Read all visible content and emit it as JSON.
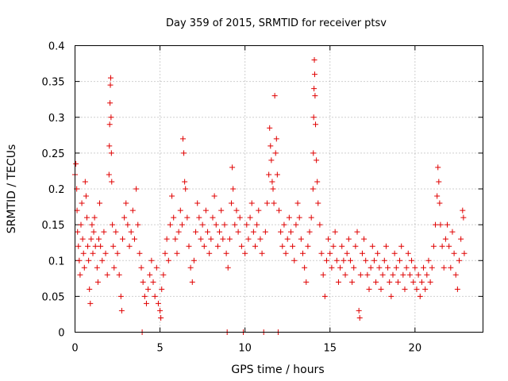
{
  "chart_data": {
    "type": "scatter",
    "title": "Day 359 of 2015, SRMTID for receiver ptsv",
    "xlabel": "GPS time / hours",
    "ylabel": "SRMTID / TECUs",
    "xlim": [
      0,
      24
    ],
    "ylim": [
      0,
      0.4
    ],
    "xticks": [
      0,
      5,
      10,
      15,
      20
    ],
    "xtick_labels": [
      "0",
      "5",
      "10",
      "15",
      "20"
    ],
    "yticks": [
      0,
      0.05,
      0.1,
      0.15,
      0.2,
      0.25,
      0.3,
      0.35,
      0.4
    ],
    "ytick_labels": [
      "0",
      "0.05",
      "0.1",
      "0.15",
      "0.2",
      "0.25",
      "0.3",
      "0.35",
      "0.4"
    ],
    "grid": true,
    "marker": "+",
    "color": "#e00000",
    "series": [
      {
        "name": "SRMTID",
        "points": [
          [
            0.0,
            0.22
          ],
          [
            0.05,
            0.235
          ],
          [
            0.1,
            0.2
          ],
          [
            0.12,
            0.17
          ],
          [
            0.15,
            0.14
          ],
          [
            0.2,
            0.12
          ],
          [
            0.25,
            0.1
          ],
          [
            0.3,
            0.08
          ],
          [
            0.35,
            0.15
          ],
          [
            0.4,
            0.18
          ],
          [
            0.45,
            0.13
          ],
          [
            0.5,
            0.11
          ],
          [
            0.55,
            0.09
          ],
          [
            0.6,
            0.21
          ],
          [
            0.65,
            0.19
          ],
          [
            0.7,
            0.16
          ],
          [
            0.75,
            0.12
          ],
          [
            0.8,
            0.1
          ],
          [
            0.85,
            0.06
          ],
          [
            0.9,
            0.04
          ],
          [
            0.95,
            0.13
          ],
          [
            1.0,
            0.15
          ],
          [
            1.05,
            0.11
          ],
          [
            1.1,
            0.14
          ],
          [
            1.15,
            0.16
          ],
          [
            1.2,
            0.12
          ],
          [
            1.3,
            0.09
          ],
          [
            1.35,
            0.07
          ],
          [
            1.4,
            0.13
          ],
          [
            1.45,
            0.18
          ],
          [
            1.5,
            0.12
          ],
          [
            1.6,
            0.1
          ],
          [
            1.7,
            0.14
          ],
          [
            1.8,
            0.11
          ],
          [
            1.9,
            0.08
          ],
          [
            2.0,
            0.22
          ],
          [
            2.02,
            0.26
          ],
          [
            2.04,
            0.29
          ],
          [
            2.06,
            0.32
          ],
          [
            2.08,
            0.345
          ],
          [
            2.1,
            0.355
          ],
          [
            2.12,
            0.3
          ],
          [
            2.14,
            0.25
          ],
          [
            2.16,
            0.21
          ],
          [
            2.2,
            0.15
          ],
          [
            2.25,
            0.12
          ],
          [
            2.3,
            0.09
          ],
          [
            2.4,
            0.14
          ],
          [
            2.5,
            0.11
          ],
          [
            2.6,
            0.08
          ],
          [
            2.7,
            0.05
          ],
          [
            2.75,
            0.03
          ],
          [
            2.8,
            0.13
          ],
          [
            2.9,
            0.16
          ],
          [
            3.0,
            0.18
          ],
          [
            3.1,
            0.15
          ],
          [
            3.2,
            0.12
          ],
          [
            3.3,
            0.14
          ],
          [
            3.4,
            0.17
          ],
          [
            3.5,
            0.13
          ],
          [
            3.6,
            0.2
          ],
          [
            3.7,
            0.15
          ],
          [
            3.8,
            0.11
          ],
          [
            3.9,
            0.09
          ],
          [
            3.95,
            0.0
          ],
          [
            4.0,
            0.07
          ],
          [
            4.1,
            0.05
          ],
          [
            4.2,
            0.04
          ],
          [
            4.3,
            0.06
          ],
          [
            4.4,
            0.08
          ],
          [
            4.5,
            0.1
          ],
          [
            4.6,
            0.07
          ],
          [
            4.7,
            0.05
          ],
          [
            4.8,
            0.09
          ],
          [
            4.9,
            0.04
          ],
          [
            5.0,
            0.03
          ],
          [
            5.05,
            0.02
          ],
          [
            5.1,
            0.06
          ],
          [
            5.2,
            0.08
          ],
          [
            5.3,
            0.11
          ],
          [
            5.4,
            0.13
          ],
          [
            5.5,
            0.1
          ],
          [
            5.6,
            0.15
          ],
          [
            5.7,
            0.19
          ],
          [
            5.8,
            0.16
          ],
          [
            5.9,
            0.13
          ],
          [
            6.0,
            0.11
          ],
          [
            6.1,
            0.14
          ],
          [
            6.2,
            0.17
          ],
          [
            6.3,
            0.15
          ],
          [
            6.35,
            0.27
          ],
          [
            6.4,
            0.25
          ],
          [
            6.45,
            0.21
          ],
          [
            6.5,
            0.2
          ],
          [
            6.6,
            0.16
          ],
          [
            6.7,
            0.12
          ],
          [
            6.8,
            0.09
          ],
          [
            6.9,
            0.07
          ],
          [
            7.0,
            0.1
          ],
          [
            7.1,
            0.14
          ],
          [
            7.2,
            0.18
          ],
          [
            7.3,
            0.16
          ],
          [
            7.4,
            0.13
          ],
          [
            7.5,
            0.15
          ],
          [
            7.6,
            0.12
          ],
          [
            7.7,
            0.17
          ],
          [
            7.8,
            0.14
          ],
          [
            7.9,
            0.11
          ],
          [
            8.0,
            0.13
          ],
          [
            8.1,
            0.16
          ],
          [
            8.2,
            0.19
          ],
          [
            8.3,
            0.15
          ],
          [
            8.4,
            0.12
          ],
          [
            8.5,
            0.14
          ],
          [
            8.6,
            0.17
          ],
          [
            8.7,
            0.13
          ],
          [
            8.8,
            0.15
          ],
          [
            8.9,
            0.11
          ],
          [
            8.95,
            0.0
          ],
          [
            9.0,
            0.09
          ],
          [
            9.1,
            0.13
          ],
          [
            9.2,
            0.18
          ],
          [
            9.25,
            0.23
          ],
          [
            9.3,
            0.2
          ],
          [
            9.4,
            0.15
          ],
          [
            9.5,
            0.17
          ],
          [
            9.6,
            0.14
          ],
          [
            9.7,
            0.16
          ],
          [
            9.8,
            0.12
          ],
          [
            9.9,
            0.0
          ],
          [
            10.0,
            0.11
          ],
          [
            10.1,
            0.15
          ],
          [
            10.2,
            0.13
          ],
          [
            10.3,
            0.16
          ],
          [
            10.4,
            0.18
          ],
          [
            10.5,
            0.14
          ],
          [
            10.6,
            0.12
          ],
          [
            10.7,
            0.15
          ],
          [
            10.8,
            0.17
          ],
          [
            10.9,
            0.13
          ],
          [
            11.0,
            0.11
          ],
          [
            11.1,
            0.0
          ],
          [
            11.2,
            0.14
          ],
          [
            11.3,
            0.18
          ],
          [
            11.4,
            0.22
          ],
          [
            11.45,
            0.285
          ],
          [
            11.5,
            0.26
          ],
          [
            11.55,
            0.24
          ],
          [
            11.6,
            0.21
          ],
          [
            11.65,
            0.2
          ],
          [
            11.7,
            0.18
          ],
          [
            11.75,
            0.33
          ],
          [
            11.8,
            0.25
          ],
          [
            11.85,
            0.27
          ],
          [
            11.9,
            0.22
          ],
          [
            11.95,
            0.0
          ],
          [
            12.0,
            0.17
          ],
          [
            12.1,
            0.14
          ],
          [
            12.2,
            0.12
          ],
          [
            12.3,
            0.15
          ],
          [
            12.4,
            0.11
          ],
          [
            12.5,
            0.13
          ],
          [
            12.6,
            0.16
          ],
          [
            12.7,
            0.14
          ],
          [
            12.8,
            0.12
          ],
          [
            12.9,
            0.1
          ],
          [
            13.0,
            0.15
          ],
          [
            13.1,
            0.18
          ],
          [
            13.2,
            0.16
          ],
          [
            13.3,
            0.13
          ],
          [
            13.4,
            0.11
          ],
          [
            13.5,
            0.09
          ],
          [
            13.6,
            0.07
          ],
          [
            13.7,
            0.12
          ],
          [
            13.8,
            0.14
          ],
          [
            13.9,
            0.16
          ],
          [
            14.0,
            0.2
          ],
          [
            14.02,
            0.25
          ],
          [
            14.04,
            0.3
          ],
          [
            14.06,
            0.34
          ],
          [
            14.08,
            0.38
          ],
          [
            14.1,
            0.36
          ],
          [
            14.12,
            0.33
          ],
          [
            14.15,
            0.29
          ],
          [
            14.2,
            0.24
          ],
          [
            14.25,
            0.21
          ],
          [
            14.3,
            0.18
          ],
          [
            14.4,
            0.15
          ],
          [
            14.5,
            0.11
          ],
          [
            14.6,
            0.08
          ],
          [
            14.7,
            0.05
          ],
          [
            14.8,
            0.1
          ],
          [
            14.9,
            0.13
          ],
          [
            15.0,
            0.11
          ],
          [
            15.1,
            0.09
          ],
          [
            15.2,
            0.12
          ],
          [
            15.3,
            0.14
          ],
          [
            15.4,
            0.1
          ],
          [
            15.5,
            0.07
          ],
          [
            15.6,
            0.09
          ],
          [
            15.7,
            0.12
          ],
          [
            15.8,
            0.1
          ],
          [
            15.9,
            0.08
          ],
          [
            16.0,
            0.11
          ],
          [
            16.1,
            0.13
          ],
          [
            16.2,
            0.1
          ],
          [
            16.3,
            0.07
          ],
          [
            16.4,
            0.09
          ],
          [
            16.5,
            0.12
          ],
          [
            16.6,
            0.14
          ],
          [
            16.7,
            0.03
          ],
          [
            16.75,
            0.02
          ],
          [
            16.8,
            0.08
          ],
          [
            16.9,
            0.11
          ],
          [
            17.0,
            0.13
          ],
          [
            17.1,
            0.1
          ],
          [
            17.2,
            0.08
          ],
          [
            17.3,
            0.06
          ],
          [
            17.4,
            0.09
          ],
          [
            17.5,
            0.12
          ],
          [
            17.6,
            0.1
          ],
          [
            17.7,
            0.07
          ],
          [
            17.8,
            0.11
          ],
          [
            17.9,
            0.09
          ],
          [
            18.0,
            0.06
          ],
          [
            18.1,
            0.08
          ],
          [
            18.2,
            0.1
          ],
          [
            18.3,
            0.12
          ],
          [
            18.4,
            0.09
          ],
          [
            18.5,
            0.07
          ],
          [
            18.6,
            0.05
          ],
          [
            18.7,
            0.08
          ],
          [
            18.8,
            0.11
          ],
          [
            18.9,
            0.09
          ],
          [
            19.0,
            0.07
          ],
          [
            19.1,
            0.1
          ],
          [
            19.2,
            0.12
          ],
          [
            19.3,
            0.08
          ],
          [
            19.4,
            0.06
          ],
          [
            19.5,
            0.09
          ],
          [
            19.6,
            0.11
          ],
          [
            19.7,
            0.08
          ],
          [
            19.8,
            0.1
          ],
          [
            19.9,
            0.07
          ],
          [
            20.0,
            0.09
          ],
          [
            20.1,
            0.06
          ],
          [
            20.2,
            0.08
          ],
          [
            20.3,
            0.05
          ],
          [
            20.4,
            0.07
          ],
          [
            20.5,
            0.09
          ],
          [
            20.6,
            0.06
          ],
          [
            20.7,
            0.08
          ],
          [
            20.8,
            0.1
          ],
          [
            20.9,
            0.07
          ],
          [
            21.0,
            0.09
          ],
          [
            21.1,
            0.12
          ],
          [
            21.2,
            0.15
          ],
          [
            21.3,
            0.19
          ],
          [
            21.35,
            0.23
          ],
          [
            21.4,
            0.21
          ],
          [
            21.45,
            0.18
          ],
          [
            21.5,
            0.15
          ],
          [
            21.6,
            0.12
          ],
          [
            21.7,
            0.09
          ],
          [
            21.8,
            0.13
          ],
          [
            21.9,
            0.15
          ],
          [
            22.0,
            0.12
          ],
          [
            22.1,
            0.09
          ],
          [
            22.2,
            0.14
          ],
          [
            22.3,
            0.11
          ],
          [
            22.4,
            0.08
          ],
          [
            22.5,
            0.06
          ],
          [
            22.6,
            0.1
          ],
          [
            22.7,
            0.13
          ],
          [
            22.8,
            0.17
          ],
          [
            22.85,
            0.16
          ],
          [
            22.9,
            0.11
          ]
        ]
      }
    ]
  }
}
